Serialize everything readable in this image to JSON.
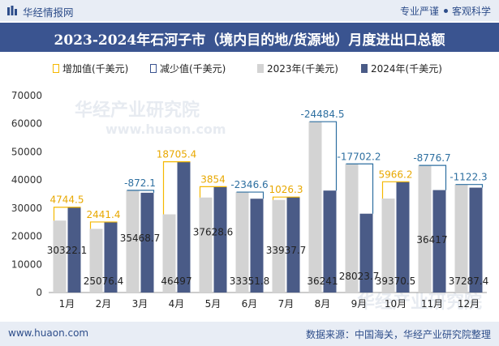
{
  "header": {
    "brand": "华经情报网",
    "slogan_left": "专业严谨",
    "slogan_right": "客观科学"
  },
  "title": "2023-2024年石河子市（境内目的地/货源地）月度进出口总额",
  "legend": {
    "increase": "增加值(千美元)",
    "decrease": "减少值(千美元)",
    "y2023": "2023年(千美元)",
    "y2024": "2024年(千美元)"
  },
  "watermarks": [
    "华经产业研究院",
    "www.huaon.com",
    "华经产业研究院"
  ],
  "footer": {
    "site": "www.huaon.com",
    "source": "数据来源：中国海关，华经产业研究院整理"
  },
  "colors": {
    "bar_2023": "#d3d3d3",
    "bar_2024": "#4a5b87",
    "increase": "#f5b800",
    "decrease": "#2d6fa0",
    "header_bg": "#3a5490"
  },
  "chart_data": {
    "type": "bar",
    "categories": [
      "1月",
      "2月",
      "3月",
      "4月",
      "5月",
      "6月",
      "7月",
      "8月",
      "9月",
      "10月",
      "11月",
      "12月"
    ],
    "series": [
      {
        "name": "2023年(千美元)",
        "values": [
          25577.6,
          22635,
          36340.8,
          27791.6,
          33773.6,
          35698.3,
          32911.4,
          60725.5,
          45726,
          33404.3,
          45193.7,
          38409.7
        ]
      },
      {
        "name": "2024年(千美元)",
        "values": [
          30322.1,
          25076.4,
          35468.7,
          46497,
          37628.6,
          33351.8,
          33937.7,
          36241,
          28023.7,
          39370.5,
          36417,
          37287.4
        ]
      }
    ],
    "changes": [
      "4744.5",
      "2441.4",
      "-872.1",
      "18705.4",
      "3854",
      "-2346.6",
      "1026.3",
      "-24484.5",
      "-17702.2",
      "5966.2",
      "-8776.7",
      "-1122.3"
    ],
    "labels_2024": [
      "30322.1",
      "25076.4",
      "35468.7",
      "46497",
      "37628.6",
      "33351.8",
      "33937.7",
      "36241",
      "28023.7",
      "39370.5",
      "36417",
      "37287.4"
    ],
    "y_ticks": [
      "0",
      "10000",
      "20000",
      "30000",
      "40000",
      "50000",
      "60000",
      "70000"
    ],
    "ylim": [
      0,
      70000
    ]
  }
}
